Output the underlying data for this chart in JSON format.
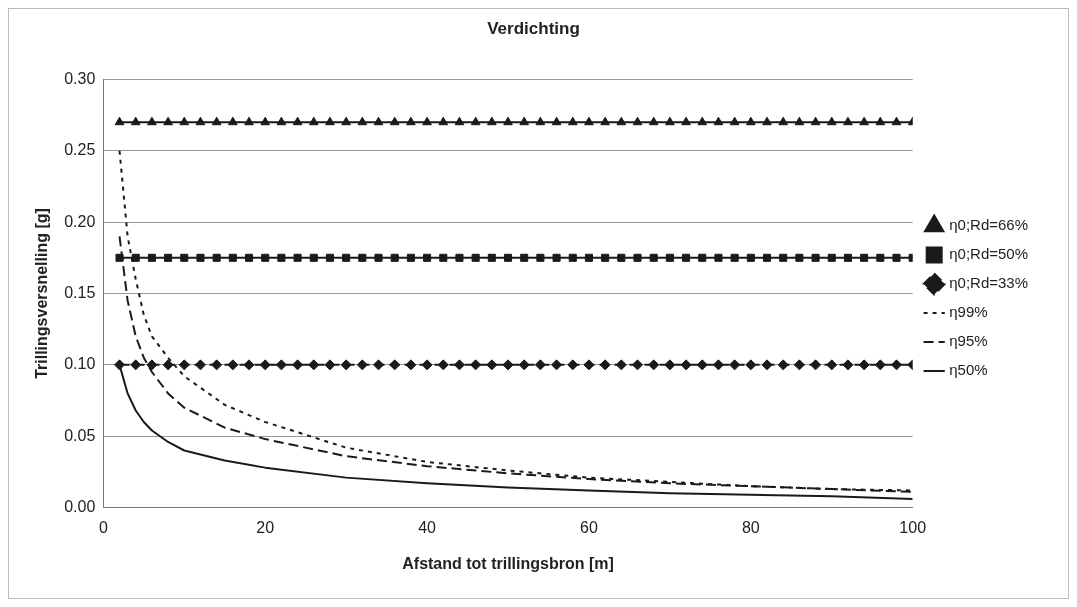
{
  "chart_data": {
    "type": "line",
    "title": "Verdichting",
    "xlabel": "Afstand tot trillingsbron [m]",
    "ylabel": "Trillingsversnelling [g]",
    "xlim": [
      0,
      100
    ],
    "xticks": [
      0,
      20,
      40,
      60,
      80,
      100
    ],
    "ylim": [
      0,
      0.3
    ],
    "yticks": [
      {
        "value": 0,
        "label": "0.00"
      },
      {
        "value": 0.05,
        "label": "0.05"
      },
      {
        "value": 0.1,
        "label": "0.10"
      },
      {
        "value": 0.15,
        "label": "0.15"
      },
      {
        "value": 0.2,
        "label": "0.20"
      },
      {
        "value": 0.25,
        "label": "0.25"
      },
      {
        "value": 0.3,
        "label": "0.30"
      }
    ],
    "grid": "y",
    "legend": "right",
    "series": [
      {
        "name": "η0;Rd=66%",
        "color": "#1a1a1a",
        "marker": "triangle",
        "line_style": "solid",
        "x": [
          2,
          4,
          6,
          8,
          10,
          12,
          14,
          16,
          18,
          20,
          22,
          24,
          26,
          28,
          30,
          32,
          34,
          36,
          38,
          40,
          42,
          44,
          46,
          48,
          50,
          52,
          54,
          56,
          58,
          60,
          62,
          64,
          66,
          68,
          70,
          72,
          74,
          76,
          78,
          80,
          82,
          84,
          86,
          88,
          90,
          92,
          94,
          96,
          98,
          100
        ],
        "values": [
          0.27,
          0.27,
          0.27,
          0.27,
          0.27,
          0.27,
          0.27,
          0.27,
          0.27,
          0.27,
          0.27,
          0.27,
          0.27,
          0.27,
          0.27,
          0.27,
          0.27,
          0.27,
          0.27,
          0.27,
          0.27,
          0.27,
          0.27,
          0.27,
          0.27,
          0.27,
          0.27,
          0.27,
          0.27,
          0.27,
          0.27,
          0.27,
          0.27,
          0.27,
          0.27,
          0.27,
          0.27,
          0.27,
          0.27,
          0.27,
          0.27,
          0.27,
          0.27,
          0.27,
          0.27,
          0.27,
          0.27,
          0.27,
          0.27,
          0.27
        ]
      },
      {
        "name": "η0;Rd=50%",
        "color": "#1a1a1a",
        "marker": "square",
        "line_style": "solid",
        "x": [
          2,
          4,
          6,
          8,
          10,
          12,
          14,
          16,
          18,
          20,
          22,
          24,
          26,
          28,
          30,
          32,
          34,
          36,
          38,
          40,
          42,
          44,
          46,
          48,
          50,
          52,
          54,
          56,
          58,
          60,
          62,
          64,
          66,
          68,
          70,
          72,
          74,
          76,
          78,
          80,
          82,
          84,
          86,
          88,
          90,
          92,
          94,
          96,
          98,
          100
        ],
        "values": [
          0.175,
          0.175,
          0.175,
          0.175,
          0.175,
          0.175,
          0.175,
          0.175,
          0.175,
          0.175,
          0.175,
          0.175,
          0.175,
          0.175,
          0.175,
          0.175,
          0.175,
          0.175,
          0.175,
          0.175,
          0.175,
          0.175,
          0.175,
          0.175,
          0.175,
          0.175,
          0.175,
          0.175,
          0.175,
          0.175,
          0.175,
          0.175,
          0.175,
          0.175,
          0.175,
          0.175,
          0.175,
          0.175,
          0.175,
          0.175,
          0.175,
          0.175,
          0.175,
          0.175,
          0.175,
          0.175,
          0.175,
          0.175,
          0.175,
          0.175
        ]
      },
      {
        "name": "η0;Rd=33%",
        "color": "#1a1a1a",
        "marker": "diamond",
        "line_style": "dashed",
        "x": [
          2,
          4,
          6,
          8,
          10,
          12,
          14,
          16,
          18,
          20,
          22,
          24,
          26,
          28,
          30,
          32,
          34,
          36,
          38,
          40,
          42,
          44,
          46,
          48,
          50,
          52,
          54,
          56,
          58,
          60,
          62,
          64,
          66,
          68,
          70,
          72,
          74,
          76,
          78,
          80,
          82,
          84,
          86,
          88,
          90,
          92,
          94,
          96,
          98,
          100
        ],
        "values": [
          0.1,
          0.1,
          0.1,
          0.1,
          0.1,
          0.1,
          0.1,
          0.1,
          0.1,
          0.1,
          0.1,
          0.1,
          0.1,
          0.1,
          0.1,
          0.1,
          0.1,
          0.1,
          0.1,
          0.1,
          0.1,
          0.1,
          0.1,
          0.1,
          0.1,
          0.1,
          0.1,
          0.1,
          0.1,
          0.1,
          0.1,
          0.1,
          0.1,
          0.1,
          0.1,
          0.1,
          0.1,
          0.1,
          0.1,
          0.1,
          0.1,
          0.1,
          0.1,
          0.1,
          0.1,
          0.1,
          0.1,
          0.1,
          0.1,
          0.1
        ]
      },
      {
        "name": "η99%",
        "color": "#1a1a1a",
        "marker": "none",
        "line_style": "dotted",
        "x": [
          2,
          3,
          4,
          5,
          6,
          8,
          10,
          15,
          20,
          30,
          40,
          50,
          60,
          70,
          80,
          90,
          100
        ],
        "values": [
          0.25,
          0.19,
          0.16,
          0.135,
          0.12,
          0.105,
          0.092,
          0.072,
          0.06,
          0.042,
          0.032,
          0.026,
          0.021,
          0.018,
          0.015,
          0.013,
          0.012
        ]
      },
      {
        "name": "η95%",
        "color": "#1a1a1a",
        "marker": "none",
        "line_style": "dashed",
        "x": [
          2,
          3,
          4,
          5,
          6,
          8,
          10,
          15,
          20,
          30,
          40,
          50,
          60,
          70,
          80,
          90,
          100
        ],
        "values": [
          0.19,
          0.145,
          0.12,
          0.105,
          0.095,
          0.08,
          0.07,
          0.056,
          0.048,
          0.036,
          0.029,
          0.024,
          0.02,
          0.017,
          0.015,
          0.013,
          0.011
        ]
      },
      {
        "name": "η50%",
        "color": "#1a1a1a",
        "marker": "none",
        "line_style": "solid",
        "x": [
          2,
          3,
          4,
          5,
          6,
          8,
          10,
          15,
          20,
          30,
          40,
          50,
          60,
          70,
          80,
          90,
          100
        ],
        "values": [
          0.1,
          0.08,
          0.068,
          0.06,
          0.054,
          0.046,
          0.04,
          0.033,
          0.028,
          0.021,
          0.017,
          0.014,
          0.012,
          0.01,
          0.009,
          0.008,
          0.006
        ]
      }
    ]
  }
}
